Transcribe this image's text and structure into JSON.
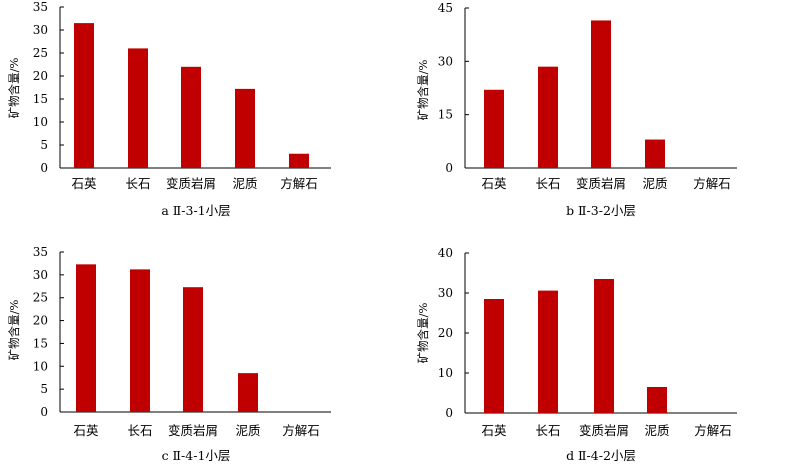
{
  "colors": {
    "bar": "#C00000",
    "axis": "#000000"
  },
  "chart_data": [
    {
      "type": "bar",
      "title": "a  Ⅱ-3-1小层",
      "xlabel": "",
      "ylabel": "矿物含量/%",
      "categories": [
        "石英",
        "长石",
        "变质岩屑",
        "泥质",
        "方解石"
      ],
      "values": [
        31.5,
        26,
        22,
        17.2,
        3.1
      ],
      "ylim": [
        0,
        35
      ],
      "yticks": [
        "0",
        "5",
        "10",
        "15",
        "20",
        "25",
        "30",
        "35"
      ],
      "grid": false
    },
    {
      "type": "bar",
      "title": "b  Ⅱ-3-2小层",
      "xlabel": "",
      "ylabel": "矿物含量/%",
      "categories": [
        "石英",
        "长石",
        "变质岩屑",
        "泥质",
        "方解石"
      ],
      "values": [
        22,
        28.5,
        41.5,
        8,
        0
      ],
      "ylim": [
        0,
        45
      ],
      "yticks": [
        "0",
        "15",
        "30",
        "45"
      ],
      "grid": false
    },
    {
      "type": "bar",
      "title": "c  Ⅱ-4-1小层",
      "xlabel": "",
      "ylabel": "矿物含量/%",
      "categories": [
        "石英",
        "长石",
        "变质岩屑",
        "泥质",
        "方解石"
      ],
      "values": [
        32.3,
        31.2,
        27.3,
        8.5,
        0
      ],
      "ylim": [
        0,
        35
      ],
      "yticks": [
        "0",
        "5",
        "10",
        "15",
        "20",
        "25",
        "30",
        "35"
      ],
      "grid": false
    },
    {
      "type": "bar",
      "title": "d  Ⅱ-4-2小层",
      "xlabel": "",
      "ylabel": "矿物含量/%",
      "categories": [
        "石英",
        "长石",
        "变质岩屑",
        "泥质",
        "方解石"
      ],
      "values": [
        28.5,
        30.6,
        33.5,
        6.5,
        0
      ],
      "ylim": [
        0,
        40
      ],
      "yticks": [
        "0",
        "10",
        "20",
        "30",
        "40"
      ],
      "grid": false
    }
  ]
}
